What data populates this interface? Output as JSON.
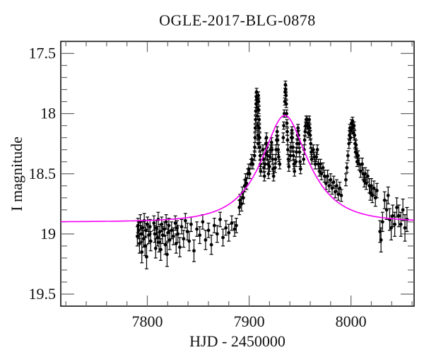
{
  "chart_data": {
    "type": "scatter",
    "title": "OGLE-2017-BLG-0878",
    "xlabel": "HJD - 2450000",
    "ylabel": "I magnitude",
    "xlim": [
      7715,
      8062
    ],
    "ylim": [
      19.6,
      17.4
    ],
    "y_axis_inverted": true,
    "grid": false,
    "legend": "none",
    "x_ticks": {
      "major_values": [
        7800,
        7900,
        8000
      ],
      "major_labels": [
        "7800",
        "7900",
        "8000"
      ],
      "minor_start": 7720,
      "minor_end": 8060,
      "minor_step": 20
    },
    "y_ticks": {
      "major_values": [
        17.5,
        18,
        18.5,
        19,
        19.5
      ],
      "major_labels": [
        "17.5",
        "18",
        "18.5",
        "19",
        "19.5"
      ],
      "minor_start": 17.5,
      "minor_end": 19.5,
      "minor_step": 0.1
    },
    "colors": {
      "data": "#000000",
      "model": "#f500f5",
      "frame": "#111111",
      "ticks": "#666666",
      "background": "#ffffff"
    },
    "model": {
      "name": "microlensing-model-curve",
      "kind": "paczynski",
      "color": "#f500f5",
      "t0": 7935,
      "tE": 40,
      "u0": 0.48,
      "I_baseline": 18.9,
      "I_peak": 18.02
    },
    "points_format": [
      "hjd_minus_2450000",
      "I_magnitude",
      "error"
    ],
    "points": [
      [
        7790.2,
        19.02,
        0.08
      ],
      [
        7790.8,
        18.93,
        0.06
      ],
      [
        7791.5,
        18.97,
        0.07
      ],
      [
        7792.3,
        19.08,
        0.08
      ],
      [
        7793.1,
        18.9,
        0.06
      ],
      [
        7793.9,
        19.0,
        0.07
      ],
      [
        7794.6,
        19.15,
        0.09
      ],
      [
        7795.4,
        18.95,
        0.06
      ],
      [
        7796.2,
        19.04,
        0.07
      ],
      [
        7797.0,
        18.89,
        0.06
      ],
      [
        7797.8,
        19.1,
        0.08
      ],
      [
        7798.5,
        18.97,
        0.06
      ],
      [
        7799.3,
        19.19,
        0.1
      ],
      [
        7800.1,
        18.92,
        0.06
      ],
      [
        7801.4,
        19.01,
        0.07
      ],
      [
        7802.6,
        18.94,
        0.06
      ],
      [
        7803.3,
        19.06,
        0.08
      ],
      [
        7806.5,
        18.91,
        0.06
      ],
      [
        7807.3,
        19.0,
        0.07
      ],
      [
        7808.2,
        19.12,
        0.08
      ],
      [
        7809.0,
        18.95,
        0.06
      ],
      [
        7809.8,
        19.03,
        0.07
      ],
      [
        7810.7,
        18.88,
        0.06
      ],
      [
        7811.5,
        19.07,
        0.08
      ],
      [
        7812.4,
        18.98,
        0.06
      ],
      [
        7813.2,
        19.13,
        0.09
      ],
      [
        7814.1,
        18.92,
        0.06
      ],
      [
        7815.0,
        19.01,
        0.07
      ],
      [
        7816.8,
        18.96,
        0.06
      ],
      [
        7817.7,
        19.09,
        0.08
      ],
      [
        7818.5,
        18.9,
        0.06
      ],
      [
        7819.4,
        19.17,
        0.1
      ],
      [
        7820.2,
        18.99,
        0.07
      ],
      [
        7821.1,
        18.93,
        0.06
      ],
      [
        7822.0,
        19.05,
        0.08
      ],
      [
        7823.8,
        18.97,
        0.07
      ],
      [
        7825.6,
        19.02,
        0.07
      ],
      [
        7827.5,
        18.91,
        0.06
      ],
      [
        7828.3,
        19.08,
        0.08
      ],
      [
        7829.2,
        18.95,
        0.06
      ],
      [
        7830.0,
        19.0,
        0.07
      ],
      [
        7831.9,
        19.11,
        0.08
      ],
      [
        7833.7,
        18.94,
        0.06
      ],
      [
        7835.6,
        19.04,
        0.07
      ],
      [
        7837.4,
        18.89,
        0.06
      ],
      [
        7839.3,
        18.98,
        0.07
      ],
      [
        7841.1,
        19.06,
        0.08
      ],
      [
        7843.0,
        18.92,
        0.06
      ],
      [
        7845.8,
        19.14,
        0.09
      ],
      [
        7848.7,
        18.96,
        0.06
      ],
      [
        7851.5,
        19.01,
        0.07
      ],
      [
        7854.4,
        18.9,
        0.06
      ],
      [
        7857.2,
        19.05,
        0.08
      ],
      [
        7860.1,
        18.97,
        0.06
      ],
      [
        7862.9,
        19.09,
        0.08
      ],
      [
        7865.8,
        18.93,
        0.06
      ],
      [
        7868.6,
        19.0,
        0.07
      ],
      [
        7871.5,
        18.88,
        0.06
      ],
      [
        7874.3,
        19.03,
        0.07
      ],
      [
        7877.2,
        18.95,
        0.06
      ],
      [
        7880.0,
        18.99,
        0.07
      ],
      [
        7882.9,
        18.91,
        0.06
      ],
      [
        7885.7,
        18.96,
        0.06
      ],
      [
        7887.4,
        18.93,
        0.06
      ],
      [
        7890.3,
        18.78,
        0.06
      ],
      [
        7891.2,
        18.72,
        0.05
      ],
      [
        7892.5,
        18.75,
        0.06
      ],
      [
        7893.4,
        18.66,
        0.05
      ],
      [
        7894.3,
        18.7,
        0.05
      ],
      [
        7895.6,
        18.6,
        0.05
      ],
      [
        7896.5,
        18.55,
        0.05
      ],
      [
        7897.4,
        18.58,
        0.05
      ],
      [
        7898.7,
        18.5,
        0.04
      ],
      [
        7899.6,
        18.46,
        0.04
      ],
      [
        7900.5,
        18.5,
        0.04
      ],
      [
        7901.8,
        18.42,
        0.04
      ],
      [
        7902.7,
        18.38,
        0.04
      ],
      [
        7903.6,
        18.42,
        0.04
      ],
      [
        7905.3,
        18.35,
        0.04
      ],
      [
        7905.5,
        18.28,
        0.04
      ],
      [
        7905.8,
        18.2,
        0.04
      ],
      [
        7906.0,
        18.12,
        0.03
      ],
      [
        7906.3,
        18.05,
        0.03
      ],
      [
        7906.5,
        17.98,
        0.03
      ],
      [
        7906.8,
        17.92,
        0.03
      ],
      [
        7907.0,
        17.86,
        0.03
      ],
      [
        7907.3,
        17.82,
        0.03
      ],
      [
        7907.5,
        17.88,
        0.03
      ],
      [
        7907.8,
        17.95,
        0.03
      ],
      [
        7908.0,
        18.02,
        0.03
      ],
      [
        7908.3,
        18.1,
        0.03
      ],
      [
        7908.5,
        18.18,
        0.04
      ],
      [
        7908.8,
        18.25,
        0.04
      ],
      [
        7909.0,
        17.85,
        0.03
      ],
      [
        7909.3,
        17.9,
        0.03
      ],
      [
        7909.5,
        17.97,
        0.03
      ],
      [
        7909.8,
        18.05,
        0.03
      ],
      [
        7910.0,
        18.12,
        0.03
      ],
      [
        7910.3,
        18.2,
        0.04
      ],
      [
        7910.5,
        18.28,
        0.04
      ],
      [
        7910.8,
        18.35,
        0.04
      ],
      [
        7911.0,
        18.42,
        0.04
      ],
      [
        7911.3,
        18.48,
        0.04
      ],
      [
        7913.5,
        18.3,
        0.04
      ],
      [
        7914.0,
        18.38,
        0.04
      ],
      [
        7914.5,
        18.45,
        0.04
      ],
      [
        7915.0,
        18.52,
        0.04
      ],
      [
        7915.5,
        18.42,
        0.04
      ],
      [
        7916.0,
        18.33,
        0.04
      ],
      [
        7916.5,
        18.25,
        0.04
      ],
      [
        7917.0,
        18.2,
        0.04
      ],
      [
        7917.5,
        18.28,
        0.04
      ],
      [
        7918.0,
        18.35,
        0.04
      ],
      [
        7918.5,
        18.42,
        0.04
      ],
      [
        7919.0,
        18.5,
        0.04
      ],
      [
        7920.0,
        18.44,
        0.04
      ],
      [
        7920.5,
        18.36,
        0.04
      ],
      [
        7921.0,
        18.3,
        0.04
      ],
      [
        7922.0,
        18.24,
        0.04
      ],
      [
        7922.5,
        18.3,
        0.04
      ],
      [
        7923.0,
        18.38,
        0.04
      ],
      [
        7923.5,
        18.46,
        0.04
      ],
      [
        7924.0,
        18.52,
        0.04
      ],
      [
        7925.5,
        18.45,
        0.04
      ],
      [
        7926.0,
        18.38,
        0.04
      ],
      [
        7926.5,
        18.3,
        0.04
      ],
      [
        7927.0,
        18.22,
        0.04
      ],
      [
        7927.5,
        18.15,
        0.04
      ],
      [
        7928.0,
        18.22,
        0.04
      ],
      [
        7928.5,
        18.3,
        0.04
      ],
      [
        7929.0,
        18.36,
        0.04
      ],
      [
        7930.0,
        18.42,
        0.04
      ],
      [
        7933.5,
        18.2,
        0.04
      ],
      [
        7934.0,
        18.1,
        0.03
      ],
      [
        7934.5,
        18.0,
        0.03
      ],
      [
        7935.0,
        17.9,
        0.03
      ],
      [
        7935.3,
        17.82,
        0.03
      ],
      [
        7935.6,
        17.76,
        0.03
      ],
      [
        7935.9,
        17.8,
        0.03
      ],
      [
        7936.2,
        17.85,
        0.03
      ],
      [
        7936.5,
        17.92,
        0.03
      ],
      [
        7936.8,
        18.0,
        0.03
      ],
      [
        7937.1,
        18.08,
        0.03
      ],
      [
        7937.4,
        18.15,
        0.03
      ],
      [
        7937.7,
        18.22,
        0.04
      ],
      [
        7938.0,
        18.3,
        0.04
      ],
      [
        7938.5,
        18.38,
        0.04
      ],
      [
        7939.0,
        18.44,
        0.04
      ],
      [
        7940.5,
        18.35,
        0.04
      ],
      [
        7941.0,
        18.28,
        0.04
      ],
      [
        7941.5,
        18.2,
        0.04
      ],
      [
        7942.0,
        18.14,
        0.03
      ],
      [
        7942.5,
        18.2,
        0.04
      ],
      [
        7943.0,
        18.28,
        0.04
      ],
      [
        7943.5,
        18.35,
        0.04
      ],
      [
        7944.0,
        18.42,
        0.04
      ],
      [
        7944.5,
        18.48,
        0.04
      ],
      [
        7946.0,
        18.4,
        0.04
      ],
      [
        7946.5,
        18.32,
        0.04
      ],
      [
        7947.0,
        18.25,
        0.04
      ],
      [
        7947.5,
        18.18,
        0.04
      ],
      [
        7948.0,
        18.12,
        0.03
      ],
      [
        7948.5,
        18.18,
        0.04
      ],
      [
        7949.0,
        18.25,
        0.04
      ],
      [
        7949.5,
        18.32,
        0.04
      ],
      [
        7950.0,
        18.4,
        0.04
      ],
      [
        7950.5,
        18.46,
        0.04
      ],
      [
        7953.5,
        18.38,
        0.04
      ],
      [
        7954.0,
        18.3,
        0.04
      ],
      [
        7954.5,
        18.22,
        0.04
      ],
      [
        7955.0,
        18.15,
        0.04
      ],
      [
        7955.5,
        18.1,
        0.03
      ],
      [
        7956.0,
        18.05,
        0.03
      ],
      [
        7956.5,
        18.1,
        0.03
      ],
      [
        7957.0,
        18.05,
        0.03
      ],
      [
        7957.5,
        18.1,
        0.03
      ],
      [
        7958.0,
        18.16,
        0.04
      ],
      [
        7958.5,
        18.1,
        0.03
      ],
      [
        7959.0,
        18.05,
        0.03
      ],
      [
        7959.5,
        18.12,
        0.03
      ],
      [
        7960.0,
        18.18,
        0.04
      ],
      [
        7960.5,
        18.25,
        0.04
      ],
      [
        7961.0,
        18.32,
        0.04
      ],
      [
        7961.5,
        18.38,
        0.04
      ],
      [
        7963.0,
        18.3,
        0.04
      ],
      [
        7964.0,
        18.36,
        0.04
      ],
      [
        7965.0,
        18.42,
        0.04
      ],
      [
        7966.0,
        18.36,
        0.04
      ],
      [
        7967.0,
        18.3,
        0.04
      ],
      [
        7968.0,
        18.42,
        0.04
      ],
      [
        7969.0,
        18.48,
        0.04
      ],
      [
        7970.0,
        18.42,
        0.04
      ],
      [
        7971.0,
        18.5,
        0.05
      ],
      [
        7972.5,
        18.45,
        0.04
      ],
      [
        7974.0,
        18.52,
        0.05
      ],
      [
        7975.5,
        18.58,
        0.05
      ],
      [
        7977.0,
        18.52,
        0.05
      ],
      [
        7978.5,
        18.6,
        0.05
      ],
      [
        7980.0,
        18.55,
        0.05
      ],
      [
        7981.5,
        18.62,
        0.05
      ],
      [
        7983.0,
        18.57,
        0.05
      ],
      [
        7984.5,
        18.65,
        0.05
      ],
      [
        7986.0,
        18.6,
        0.05
      ],
      [
        7987.5,
        18.67,
        0.05
      ],
      [
        7989.0,
        18.62,
        0.05
      ],
      [
        7990.5,
        18.68,
        0.05
      ],
      [
        7995.0,
        18.55,
        0.05
      ],
      [
        7996.0,
        18.45,
        0.04
      ],
      [
        7997.0,
        18.35,
        0.04
      ],
      [
        7998.0,
        18.25,
        0.04
      ],
      [
        7998.5,
        18.18,
        0.04
      ],
      [
        7999.0,
        18.12,
        0.03
      ],
      [
        7999.5,
        18.2,
        0.04
      ],
      [
        8000.0,
        18.14,
        0.03
      ],
      [
        8000.5,
        18.08,
        0.03
      ],
      [
        8001.0,
        18.12,
        0.03
      ],
      [
        8001.5,
        18.06,
        0.03
      ],
      [
        8002.0,
        18.1,
        0.03
      ],
      [
        8002.5,
        18.16,
        0.04
      ],
      [
        8003.0,
        18.1,
        0.03
      ],
      [
        8003.5,
        18.18,
        0.04
      ],
      [
        8004.0,
        18.25,
        0.04
      ],
      [
        8004.5,
        18.32,
        0.04
      ],
      [
        8005.0,
        18.26,
        0.04
      ],
      [
        8005.5,
        18.33,
        0.04
      ],
      [
        8006.0,
        18.4,
        0.04
      ],
      [
        8007.0,
        18.35,
        0.04
      ],
      [
        8008.0,
        18.42,
        0.05
      ],
      [
        8009.5,
        18.48,
        0.05
      ],
      [
        8011.0,
        18.42,
        0.05
      ],
      [
        8012.0,
        18.5,
        0.05
      ],
      [
        8013.0,
        18.56,
        0.05
      ],
      [
        8014.0,
        18.5,
        0.05
      ],
      [
        8015.0,
        18.58,
        0.05
      ],
      [
        8016.5,
        18.52,
        0.05
      ],
      [
        8018.0,
        18.6,
        0.06
      ],
      [
        8019.0,
        18.66,
        0.06
      ],
      [
        8020.0,
        18.6,
        0.06
      ],
      [
        8021.0,
        18.68,
        0.06
      ],
      [
        8022.5,
        18.62,
        0.06
      ],
      [
        8024.0,
        18.7,
        0.07
      ],
      [
        8025.5,
        18.64,
        0.06
      ],
      [
        8028.5,
        18.98,
        0.09
      ],
      [
        8029.5,
        19.05,
        0.1
      ],
      [
        8031.0,
        18.9,
        0.08
      ],
      [
        8033.0,
        18.72,
        0.07
      ],
      [
        8035.0,
        18.8,
        0.08
      ],
      [
        8036.5,
        18.68,
        0.07
      ],
      [
        8038.0,
        18.88,
        0.09
      ],
      [
        8039.5,
        18.95,
        0.1
      ],
      [
        8041.0,
        18.85,
        0.09
      ],
      [
        8043.0,
        18.92,
        0.1
      ],
      [
        8045.0,
        18.78,
        0.08
      ],
      [
        8047.0,
        18.85,
        0.09
      ],
      [
        8049.0,
        18.92,
        0.1
      ],
      [
        8051.0,
        18.8,
        0.09
      ],
      [
        8053.0,
        18.95,
        0.11
      ],
      [
        8055.0,
        18.88,
        0.1
      ]
    ]
  }
}
